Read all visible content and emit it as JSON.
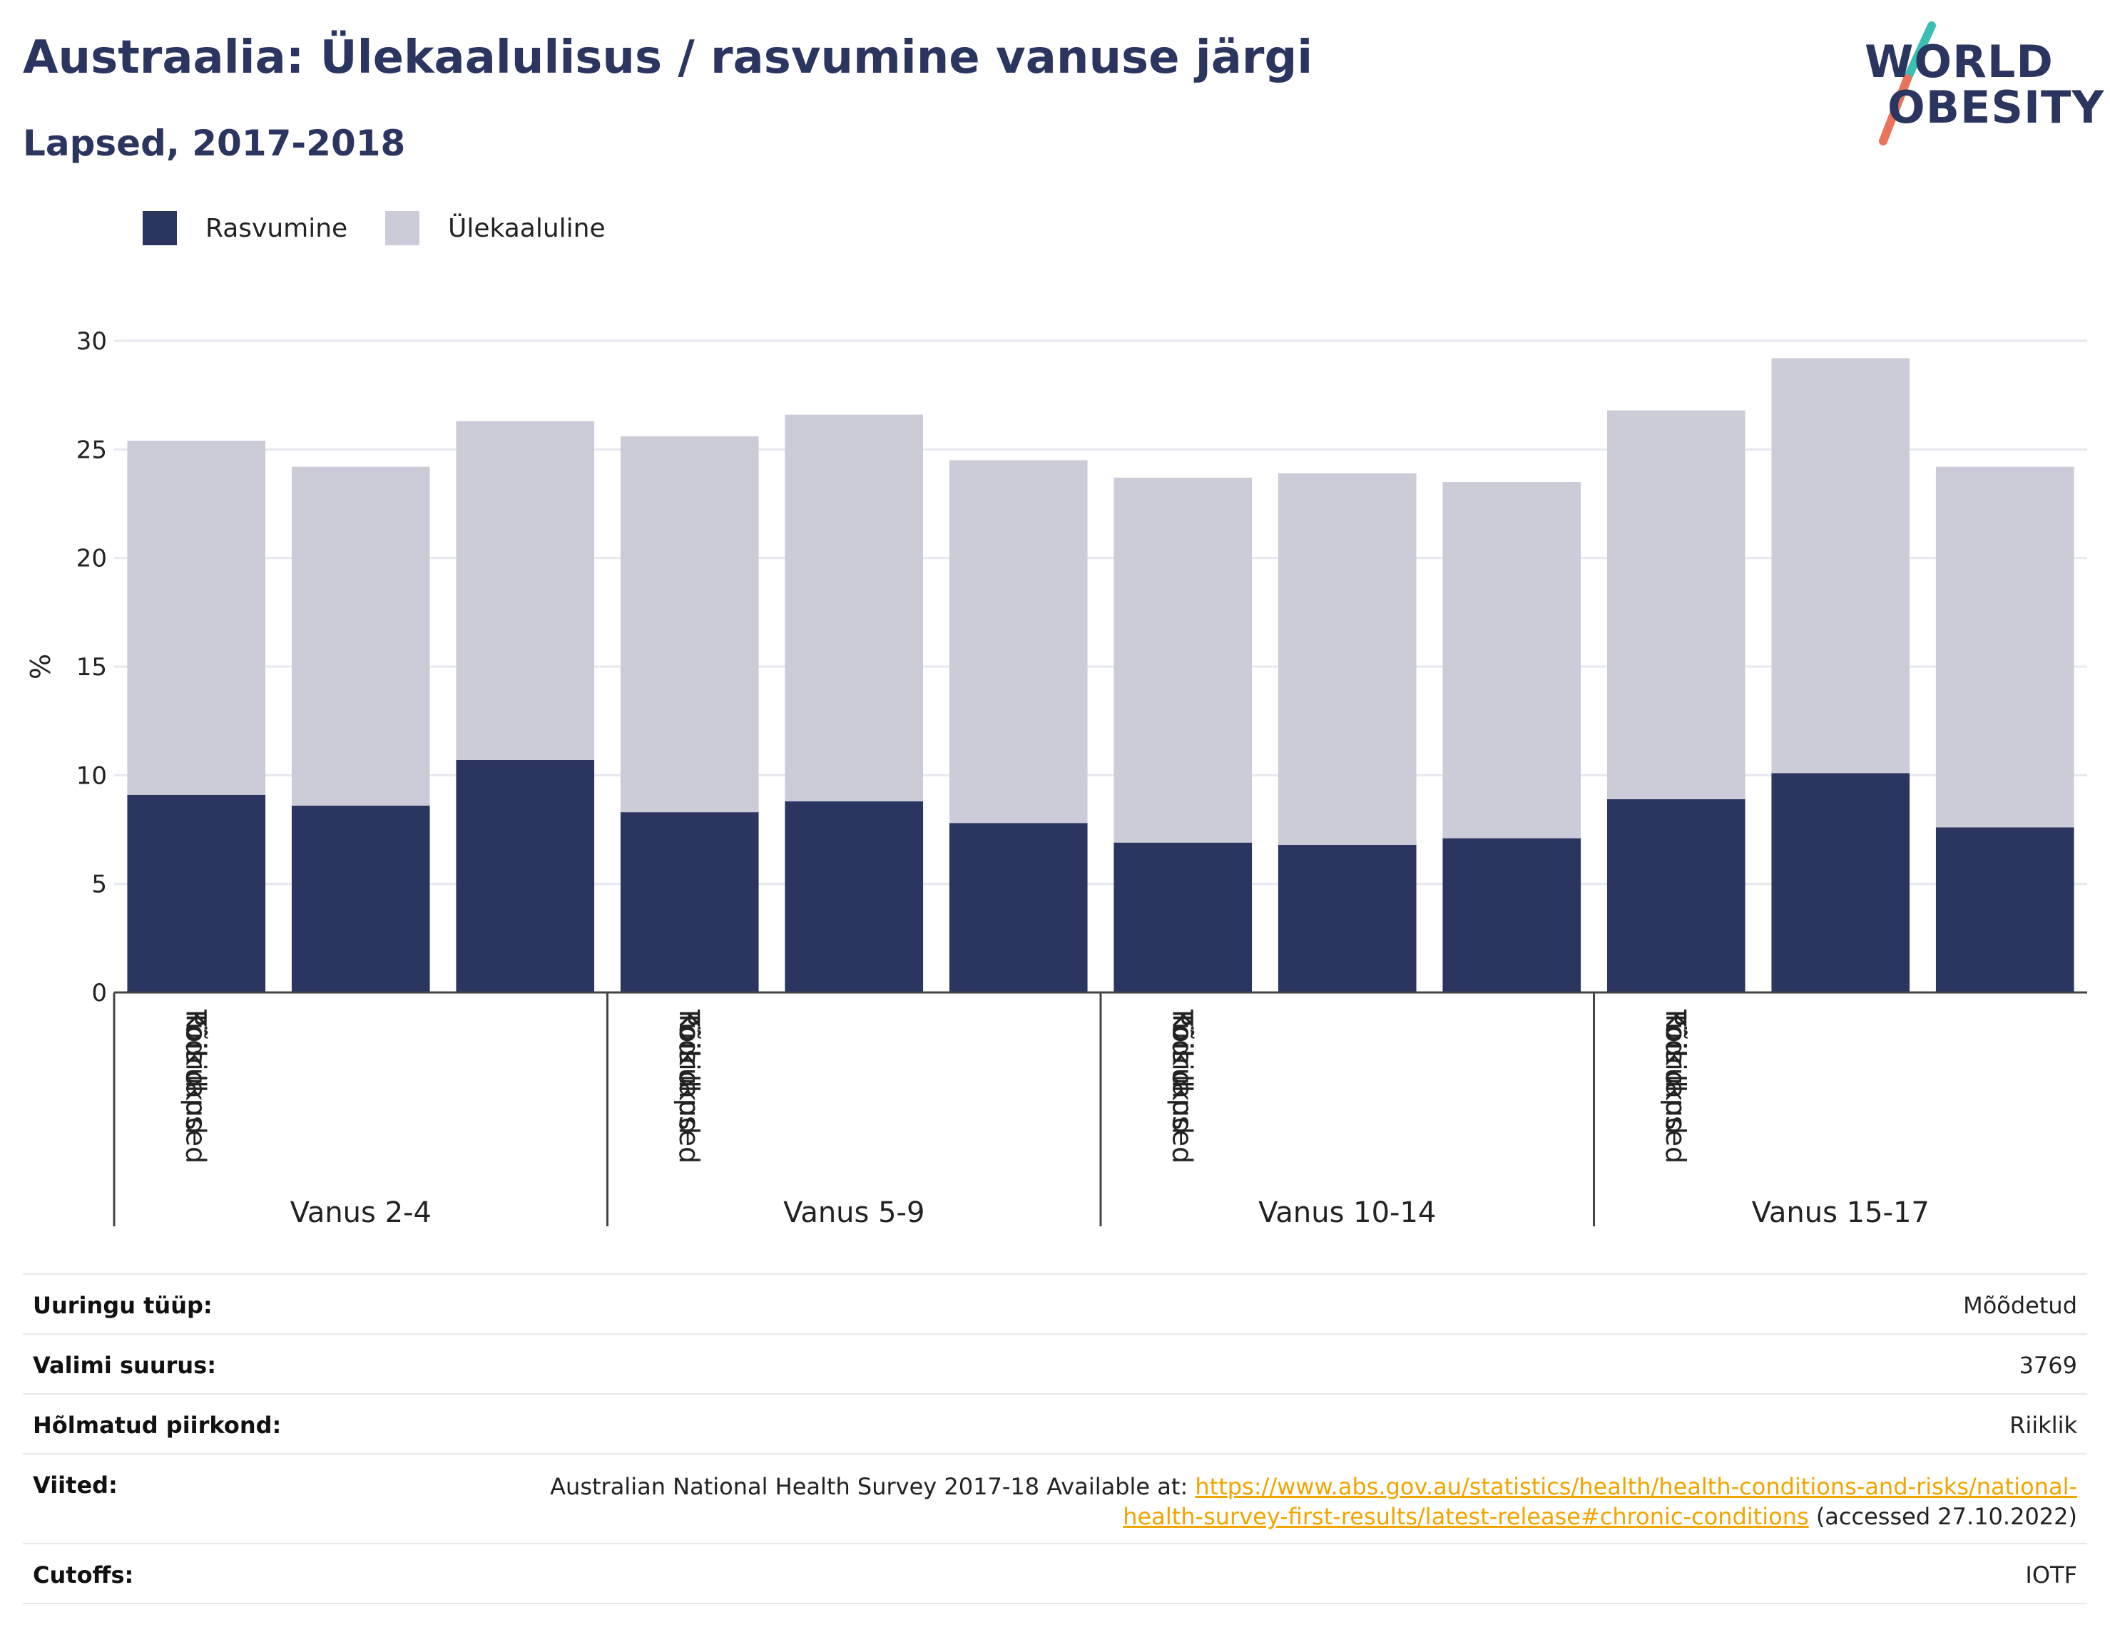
{
  "title": "Austraalia: Ülekaalulisus / rasvumine vanuse järgi",
  "subtitle": "Lapsed, 2017-2018",
  "logo": {
    "line1": "WORLD",
    "line2": "OBESITY",
    "colors": {
      "text": "#2a3560",
      "slash_top": "#3bbfb4",
      "slash_bottom": "#e8735a"
    }
  },
  "colors": {
    "obesity": "#2a3560",
    "overweight": "#cbccd8",
    "grid": "#e6e8ef",
    "axis": "#444444",
    "link": "#f0a500"
  },
  "chart_data": {
    "type": "bar",
    "stacked": true,
    "ylabel": "%",
    "ylim": [
      0,
      30
    ],
    "yticks": [
      "0",
      "5",
      "10",
      "15",
      "20",
      "25",
      "30"
    ],
    "grid": true,
    "legend": "top-left",
    "groups": [
      {
        "label": "Vanus 2-4",
        "categories": [
          "Kõik lapsed",
          "Poisid",
          "Tüdrukud"
        ]
      },
      {
        "label": "Vanus 5-9",
        "categories": [
          "Kõik lapsed",
          "Poisid",
          "Tüdrukud"
        ]
      },
      {
        "label": "Vanus 10-14",
        "categories": [
          "Kõik lapsed",
          "Poisid",
          "Tüdrukud"
        ]
      },
      {
        "label": "Vanus 15-17",
        "categories": [
          "Kõik lapsed",
          "Poisid",
          "Tüdrukud"
        ]
      }
    ],
    "series": [
      {
        "name": "Rasvumine",
        "values": [
          9.1,
          8.6,
          10.7,
          8.3,
          8.8,
          7.8,
          6.9,
          6.8,
          7.1,
          8.9,
          10.1,
          7.6
        ]
      },
      {
        "name": "Ülekaaluline",
        "values": [
          16.3,
          15.6,
          15.6,
          17.3,
          17.8,
          16.7,
          16.8,
          17.1,
          16.4,
          17.9,
          19.1,
          16.6
        ]
      }
    ]
  },
  "info": {
    "survey_type_label": "Uuringu tüüp:",
    "survey_type_value": "Mõõdetud",
    "sample_size_label": "Valimi suurus:",
    "sample_size_value": "3769",
    "area_label": "Hõlmatud piirkond:",
    "area_value": "Riiklik",
    "references_label": "Viited:",
    "references_prefix": "Australian National Health Survey 2017-18 Available at: ",
    "references_link": "https://www.abs.gov.au/statistics/health/health-conditions-and-risks/national-health-survey-first-results/latest-release#chronic-conditions",
    "references_suffix": " (accessed 27.10.2022)",
    "cutoffs_label": "Cutoffs:",
    "cutoffs_value": "IOTF"
  }
}
